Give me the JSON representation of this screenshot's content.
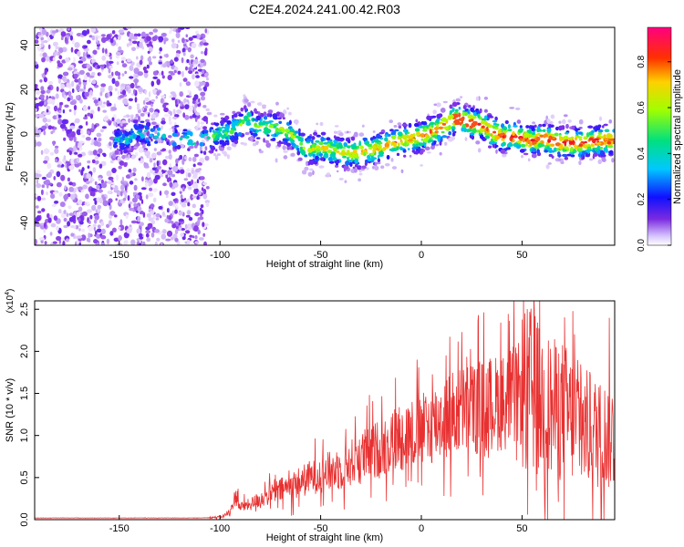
{
  "title": "C2E4.2024.241.00.42.R03",
  "chart_data": [
    {
      "type": "heatmap",
      "xlabel": "Height of straight line (km)",
      "ylabel": "Frequency (Hz)",
      "xlim": [
        -192,
        96
      ],
      "ylim": [
        -50,
        48
      ],
      "xticks": [
        -150,
        -100,
        -50,
        0,
        50
      ],
      "yticks": [
        -40,
        -20,
        0,
        20,
        40
      ],
      "ridge": {
        "x": [
          -150,
          -147,
          -142,
          -138,
          -135,
          -130,
          -120,
          -110,
          -105,
          -100,
          -95,
          -90,
          -86,
          -83,
          -80,
          -75,
          -70,
          -65,
          -60,
          -55,
          -50,
          -45,
          -40,
          -35,
          -30,
          -25,
          -20,
          -15,
          -10,
          -5,
          0,
          5,
          10,
          15,
          18,
          22,
          25,
          30,
          35,
          40,
          45,
          50,
          55,
          60,
          65,
          70,
          75,
          80,
          85,
          90,
          96
        ],
        "y": [
          -2,
          -3,
          0,
          1,
          -1,
          0,
          -2,
          -3,
          -2,
          0,
          1,
          4,
          7,
          4,
          3,
          3,
          2,
          0,
          -5,
          -7,
          -6,
          -7,
          -8,
          -9,
          -8,
          -7,
          -6,
          -4,
          -3,
          -2,
          -1,
          1,
          3,
          6,
          7,
          6,
          5,
          4,
          1,
          -1,
          -1,
          -2,
          -3,
          -2,
          -3,
          -4,
          -4,
          -4,
          -3,
          -3,
          -3
        ]
      },
      "colorbar": {
        "label": "Normalized spectral amplitude",
        "range": [
          0,
          0.95
        ],
        "ticks": [
          "0.0",
          "0.2",
          "0.4",
          "0.6",
          "0.8"
        ]
      }
    },
    {
      "type": "line",
      "xlabel": "Height of straight line (km)",
      "ylabel": "SNR (10 * v/v)",
      "multiplier_base": "(x10",
      "multiplier_exp": "4",
      "multiplier_close": ")",
      "xlim": [
        -192,
        96
      ],
      "ylim": [
        0,
        2.6
      ],
      "xticks": [
        -150,
        -100,
        -50,
        0,
        50
      ],
      "yticks": [
        "0.0",
        "0.5",
        "1.0",
        "1.5",
        "2.0",
        "2.5"
      ],
      "envelope": {
        "x": [
          -192,
          -110,
          -100,
          -95,
          -92,
          -90,
          -85,
          -80,
          -70,
          -60,
          -50,
          -40,
          -30,
          -20,
          -10,
          0,
          10,
          20,
          30,
          40,
          50,
          55,
          60,
          65,
          70,
          80,
          90,
          96
        ],
        "y": [
          0.02,
          0.02,
          0.03,
          0.08,
          0.3,
          0.15,
          0.18,
          0.25,
          0.35,
          0.45,
          0.55,
          0.6,
          0.75,
          0.85,
          1.0,
          1.05,
          1.2,
          1.3,
          1.35,
          1.4,
          1.5,
          1.55,
          1.4,
          1.3,
          1.3,
          1.1,
          1.0,
          1.0
        ]
      },
      "color": "#e83030"
    }
  ]
}
